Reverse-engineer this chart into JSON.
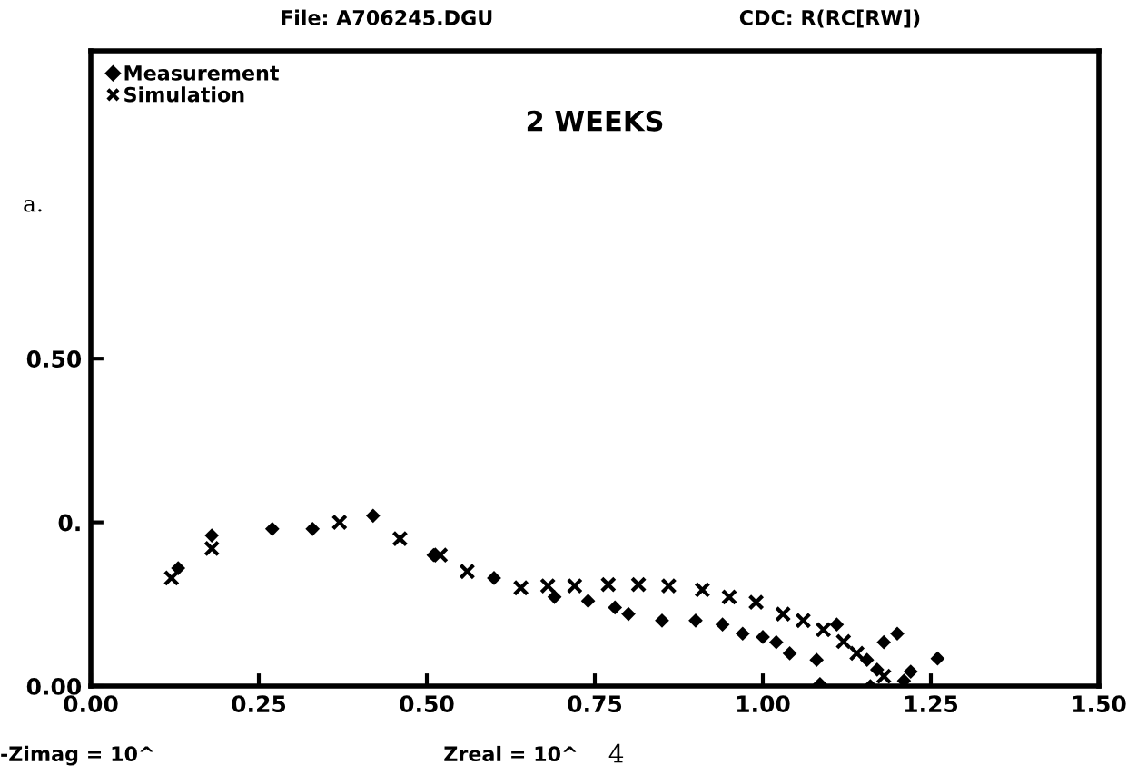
{
  "chart_data": {
    "type": "scatter",
    "title": "2 WEEKS",
    "annotations": [
      "File: A706245.DGU",
      "CDC: R(RC[RW])",
      "a.",
      "-Zimag = 10^",
      "Zreal = 10^",
      "4"
    ],
    "xlim": [
      0,
      1.5
    ],
    "ylim": [
      0,
      0.97
    ],
    "xticks": [
      {
        "value": 0,
        "label": "0.00"
      },
      0.25,
      {
        "value": 0.5,
        "label": "0.50"
      },
      0.75,
      {
        "value": 1,
        "label": "1.00"
      },
      1.25,
      {
        "value": 1.5,
        "label": "1.50"
      }
    ],
    "yticks": [
      {
        "value": 0,
        "label": "0.00"
      },
      {
        "value": 0.25,
        "label": "0."
      },
      {
        "value": 0.5,
        "label": "0.50"
      }
    ],
    "grid": false,
    "legend": "top left",
    "series": [
      {
        "name": "Measurement",
        "color": "#000000",
        "marker": "diamond",
        "x": [
          0.13,
          0.18,
          0.27,
          0.33,
          0.42,
          0.51,
          0.56,
          0.6,
          0.69,
          0.74,
          0.78,
          0.8,
          0.85,
          0.9,
          0.94,
          0.97,
          1.0,
          1.02,
          1.04,
          1.08,
          1.085,
          1.11,
          1.12,
          1.14,
          1.155,
          1.16,
          1.17,
          1.18,
          1.2,
          1.21,
          1.22,
          1.26
        ],
        "values": [
          0.18,
          0.23,
          0.24,
          0.24,
          0.26,
          0.2,
          null,
          0.165,
          0.136,
          0.13,
          0.12,
          0.11,
          0.1,
          0.1,
          0.094,
          0.08,
          0.075,
          0.067,
          0.05,
          0.04,
          0.003,
          0.094,
          null,
          null,
          0.04,
          0.0,
          0.025,
          0.067,
          0.08,
          0.008,
          0.022,
          0.042
        ]
      },
      {
        "name": "Simulation",
        "color": "#000000",
        "marker": "cross",
        "x": [
          0.12,
          0.18,
          0.37,
          0.46,
          0.52,
          0.56,
          0.64,
          0.68,
          0.72,
          0.77,
          0.815,
          0.86,
          0.91,
          0.95,
          0.99,
          1.03,
          1.06,
          1.09,
          1.12,
          1.14,
          1.16,
          1.18
        ],
        "values": [
          0.165,
          0.21,
          0.25,
          0.225,
          0.2,
          0.175,
          0.15,
          0.153,
          0.153,
          0.155,
          0.155,
          0.153,
          0.147,
          0.136,
          0.128,
          0.11,
          0.1,
          0.086,
          0.068,
          0.05,
          null,
          0.015
        ]
      }
    ]
  }
}
